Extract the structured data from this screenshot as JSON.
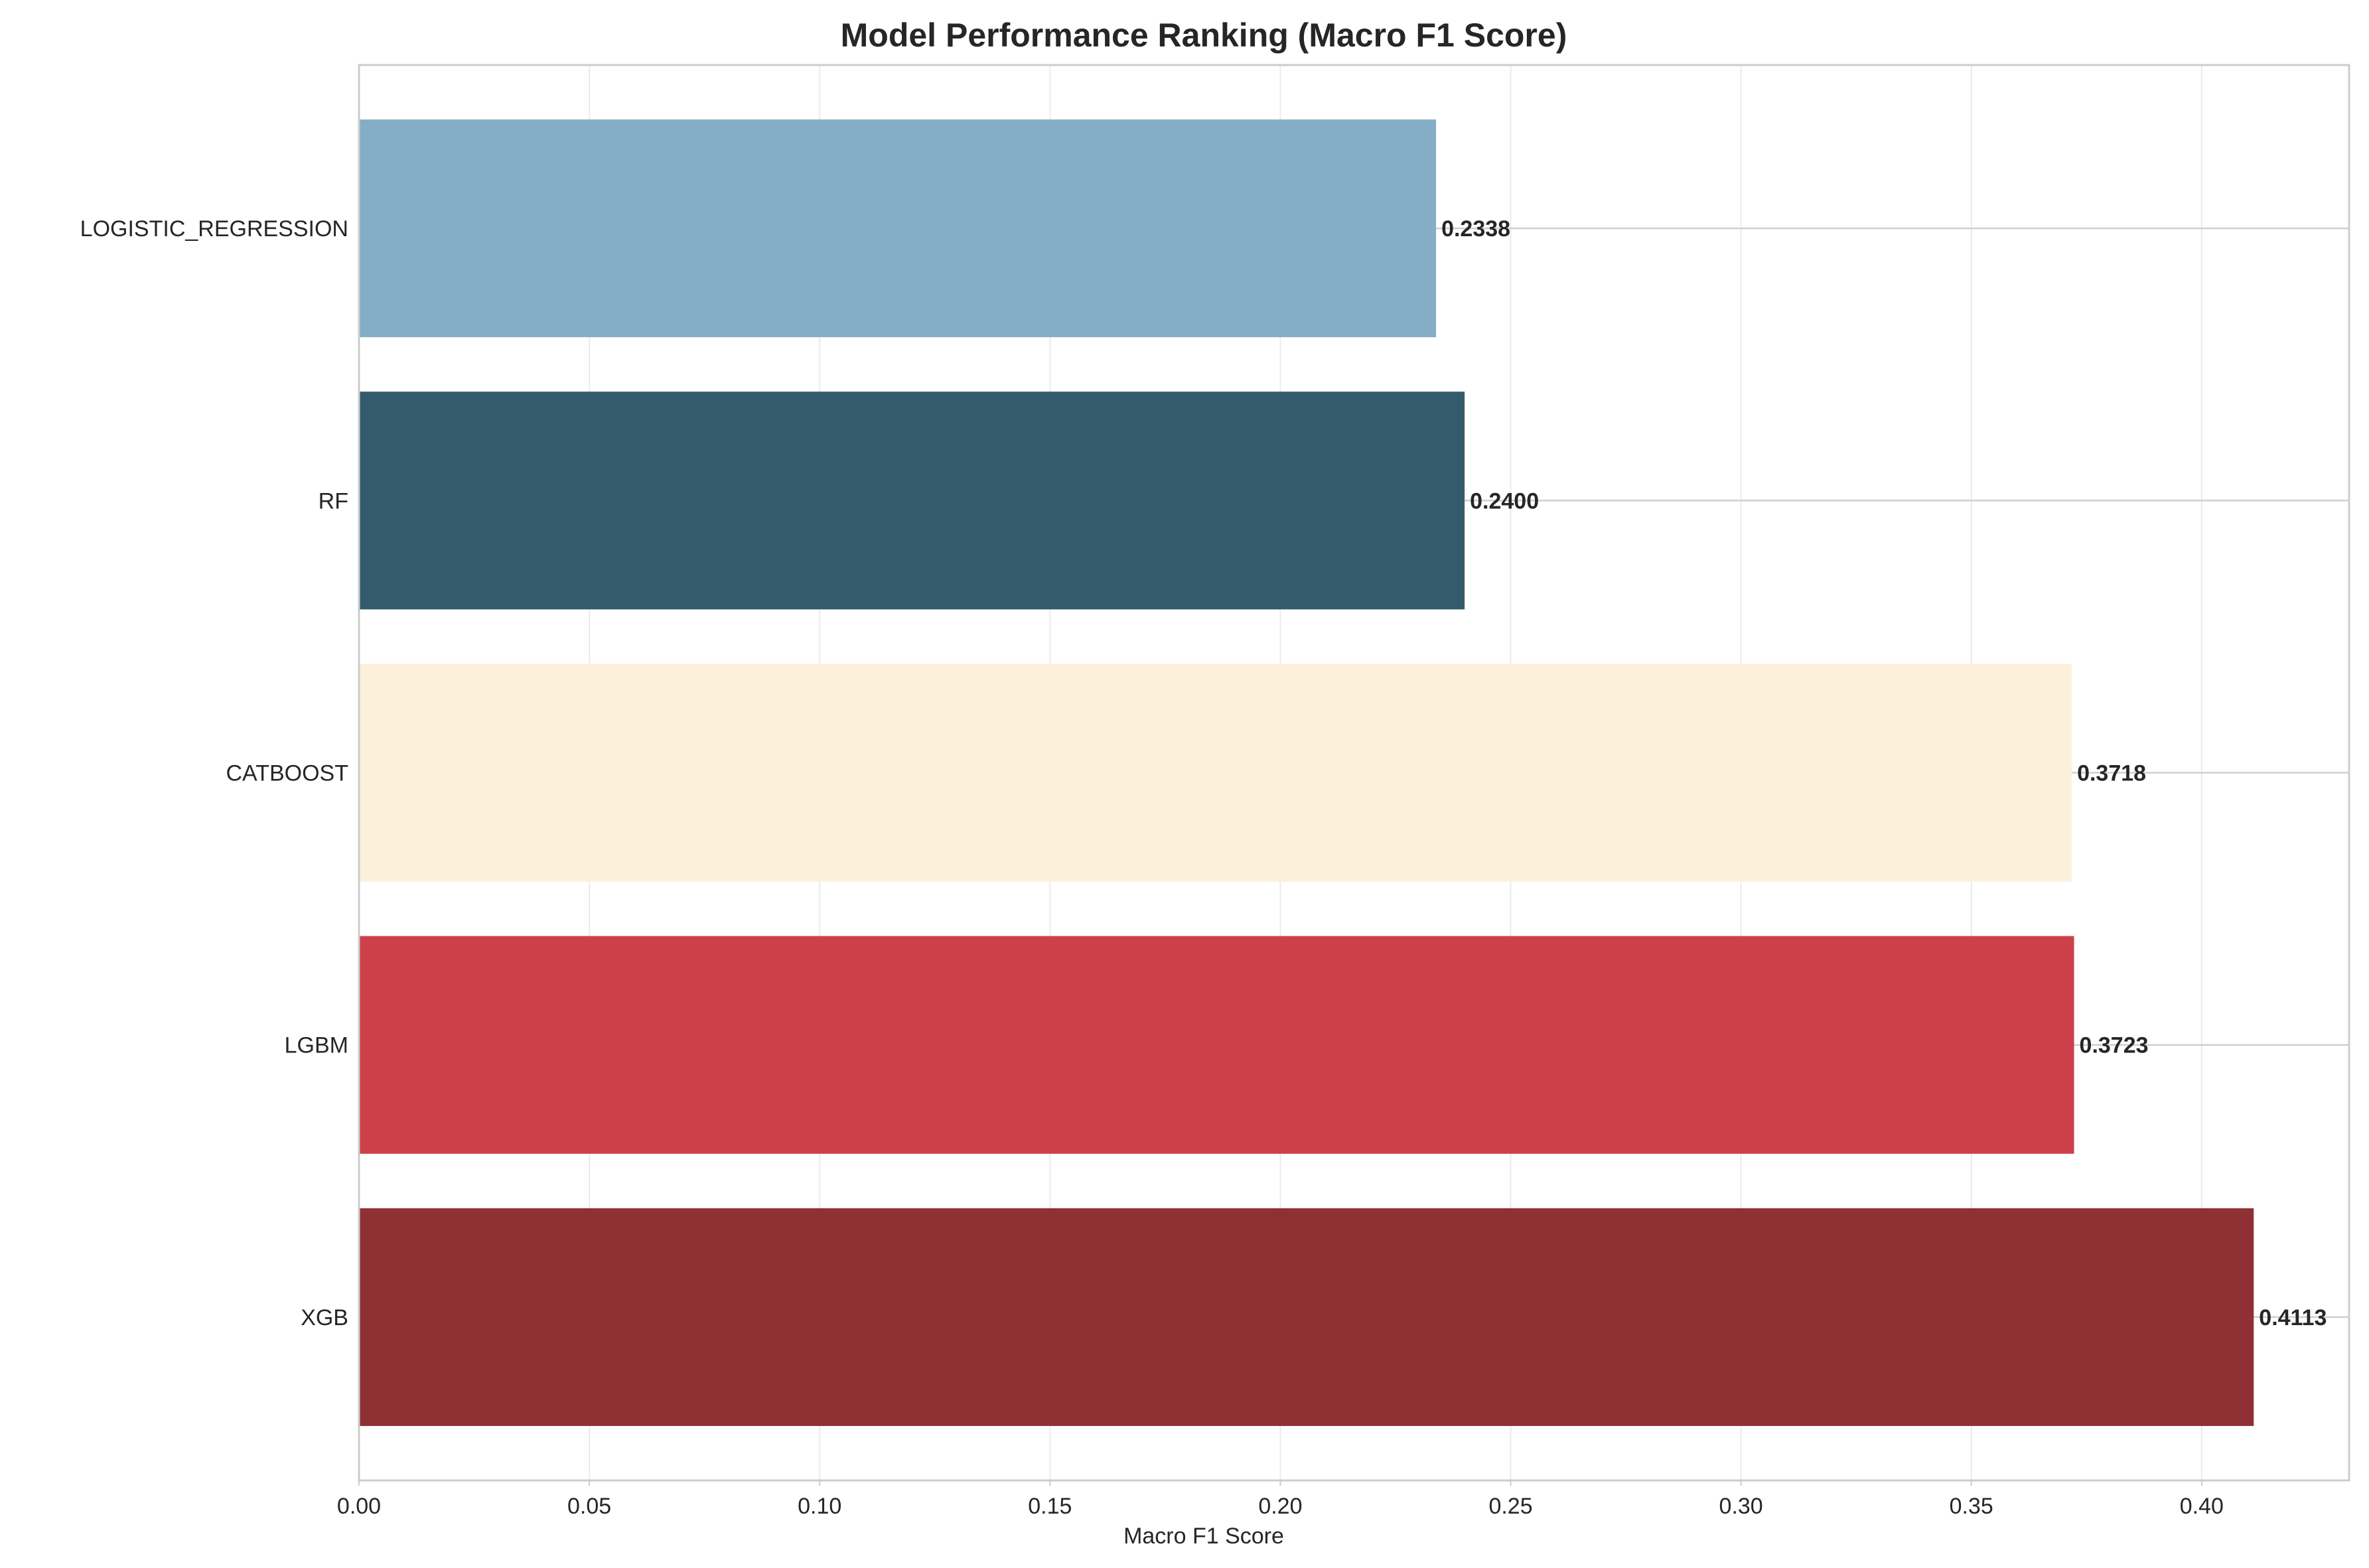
{
  "chart_data": {
    "type": "bar",
    "orientation": "horizontal",
    "title": "Model Performance Ranking (Macro F1 Score)",
    "xlabel": "Macro F1 Score",
    "ylabel": "",
    "xlim": [
      0,
      0.432
    ],
    "xticks": [
      "0.00",
      "0.05",
      "0.10",
      "0.15",
      "0.20",
      "0.25",
      "0.30",
      "0.35",
      "0.40"
    ],
    "grid": true,
    "legend": "none",
    "categories": [
      "LOGISTIC_REGRESSION",
      "RF",
      "CATBOOST",
      "LGBM",
      "XGB"
    ],
    "values": [
      0.2338,
      0.24,
      0.3718,
      0.3723,
      0.4113
    ],
    "value_labels": [
      "0.2338",
      "0.2400",
      "0.3718",
      "0.3723",
      "0.4113"
    ],
    "colors": [
      "#85aec6",
      "#335b6c",
      "#fcf0db",
      "#cd404a",
      "#8f3034"
    ]
  }
}
